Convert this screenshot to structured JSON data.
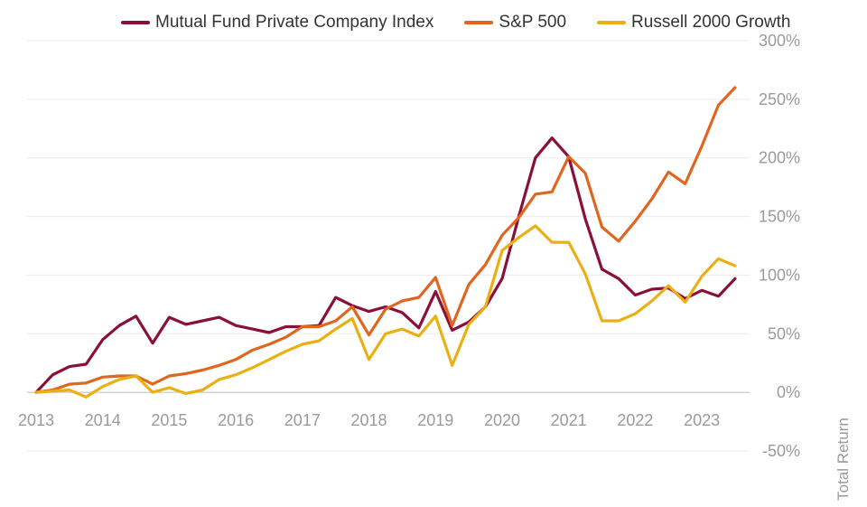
{
  "chart_data": {
    "type": "line",
    "ylabel": "Total Return",
    "ylim": [
      -50,
      300
    ],
    "xlim": [
      2013,
      2023.65
    ],
    "grid": true,
    "legend_position": "top",
    "x_ticks": [
      "2013",
      "2014",
      "2015",
      "2016",
      "2017",
      "2018",
      "2019",
      "2020",
      "2021",
      "2022",
      "2023"
    ],
    "y_ticks": [
      "300%",
      "250%",
      "200%",
      "150%",
      "100%",
      "50%",
      "0%",
      "-50%"
    ],
    "x": [
      2013.0,
      2013.25,
      2013.5,
      2013.75,
      2014.0,
      2014.25,
      2014.5,
      2014.75,
      2015.0,
      2015.25,
      2015.5,
      2015.75,
      2016.0,
      2016.25,
      2016.5,
      2016.75,
      2017.0,
      2017.25,
      2017.5,
      2017.75,
      2018.0,
      2018.25,
      2018.5,
      2018.75,
      2019.0,
      2019.25,
      2019.5,
      2019.75,
      2020.0,
      2020.25,
      2020.5,
      2020.75,
      2021.0,
      2021.25,
      2021.5,
      2021.75,
      2022.0,
      2022.25,
      2022.5,
      2022.75,
      2023.0,
      2023.25,
      2023.5
    ],
    "series": [
      {
        "name": "Mutual Fund Private Company Index",
        "color": "#8a0f3a",
        "values": [
          0,
          15,
          22,
          24,
          45,
          57,
          65,
          42,
          64,
          58,
          61,
          64,
          57,
          54,
          51,
          56,
          56,
          57,
          81,
          74,
          69,
          73,
          68,
          55,
          86,
          53,
          60,
          73,
          97,
          150,
          200,
          217,
          201,
          148,
          105,
          97,
          83,
          88,
          89,
          80,
          87,
          82,
          97
        ]
      },
      {
        "name": "S&P 500",
        "color": "#e0661f",
        "values": [
          0,
          2,
          7,
          8,
          13,
          14,
          14,
          7,
          14,
          16,
          19,
          23,
          28,
          36,
          41,
          47,
          56,
          56,
          61,
          73,
          49,
          71,
          78,
          81,
          98,
          57,
          92,
          109,
          134,
          149,
          169,
          171,
          201,
          187,
          141,
          129,
          146,
          165,
          188,
          178,
          210,
          245,
          260
        ]
      },
      {
        "name": "Russell 2000 Growth",
        "color": "#eab012",
        "values": [
          0,
          1,
          2,
          -4,
          5,
          11,
          14,
          0,
          4,
          -1,
          2,
          11,
          15,
          21,
          28,
          35,
          41,
          44,
          54,
          63,
          28,
          50,
          54,
          48,
          65,
          23,
          58,
          73,
          121,
          132,
          142,
          128,
          128,
          101,
          61,
          61,
          67,
          78,
          91,
          77,
          99,
          114,
          108
        ]
      }
    ]
  }
}
